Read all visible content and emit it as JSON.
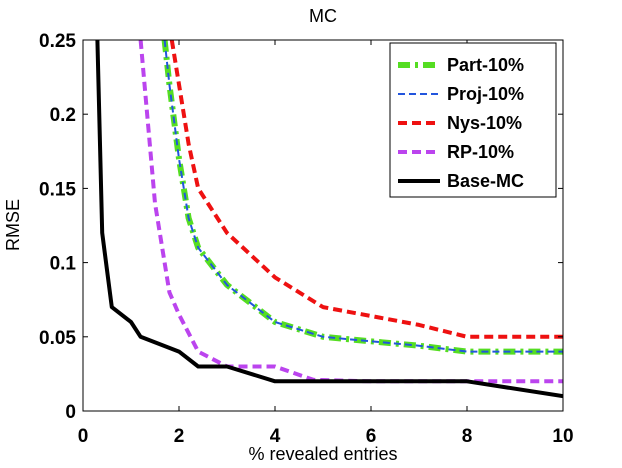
{
  "chart_data": {
    "type": "line",
    "title": "MC",
    "xlabel": "% revealed entries",
    "ylabel": "RMSE",
    "xlim": [
      0,
      10
    ],
    "ylim": [
      0,
      0.25
    ],
    "xticks": [
      0,
      2,
      4,
      6,
      8,
      10
    ],
    "xtick_labels": [
      "0",
      "2",
      "4",
      "6",
      "8",
      "10"
    ],
    "yticks": [
      0,
      0.05,
      0.1,
      0.15,
      0.2,
      0.25
    ],
    "ytick_labels": [
      "0",
      "0.05",
      "0.1",
      "0.15",
      "0.2",
      "0.25"
    ],
    "grid": false,
    "legend_position": "top-right",
    "series": [
      {
        "name": "Part-10%",
        "color": "#55dd22",
        "style": "dashdot",
        "x": [
          1.7,
          1.8,
          2.0,
          2.2,
          2.4,
          3.0,
          4.0,
          5.0,
          6.0,
          7.0,
          8.0,
          9.0,
          10.0
        ],
        "y": [
          0.25,
          0.22,
          0.17,
          0.13,
          0.11,
          0.085,
          0.06,
          0.05,
          0.047,
          0.044,
          0.04,
          0.04,
          0.04
        ]
      },
      {
        "name": "Proj-10%",
        "color": "#2255dd",
        "style": "dashed",
        "x": [
          1.7,
          1.8,
          2.0,
          2.2,
          2.4,
          3.0,
          4.0,
          5.0,
          6.0,
          7.0,
          8.0,
          9.0,
          10.0
        ],
        "y": [
          0.25,
          0.22,
          0.17,
          0.13,
          0.11,
          0.085,
          0.06,
          0.05,
          0.047,
          0.044,
          0.04,
          0.04,
          0.04
        ]
      },
      {
        "name": "Nys-10%",
        "color": "#ee1111",
        "style": "dashed",
        "x": [
          1.85,
          2.0,
          2.2,
          2.4,
          3.0,
          4.0,
          5.0,
          6.0,
          7.0,
          8.0,
          9.0,
          10.0
        ],
        "y": [
          0.25,
          0.22,
          0.18,
          0.15,
          0.12,
          0.09,
          0.07,
          0.064,
          0.058,
          0.05,
          0.05,
          0.05
        ]
      },
      {
        "name": "RP-10%",
        "color": "#bb44ee",
        "style": "dashed",
        "x": [
          1.2,
          1.5,
          1.8,
          2.0,
          2.4,
          3.0,
          4.0,
          4.8,
          6.0,
          8.0,
          10.0
        ],
        "y": [
          0.25,
          0.14,
          0.08,
          0.065,
          0.04,
          0.03,
          0.03,
          0.021,
          0.02,
          0.02,
          0.02
        ]
      },
      {
        "name": "Base-MC",
        "color": "#000000",
        "style": "solid",
        "x": [
          0.3,
          0.4,
          0.6,
          1.0,
          1.2,
          2.0,
          2.4,
          3.0,
          4.0,
          5.0,
          6.0,
          7.0,
          8.0,
          10.0
        ],
        "y": [
          0.25,
          0.12,
          0.07,
          0.06,
          0.05,
          0.04,
          0.03,
          0.03,
          0.02,
          0.02,
          0.02,
          0.02,
          0.02,
          0.01
        ]
      }
    ]
  }
}
